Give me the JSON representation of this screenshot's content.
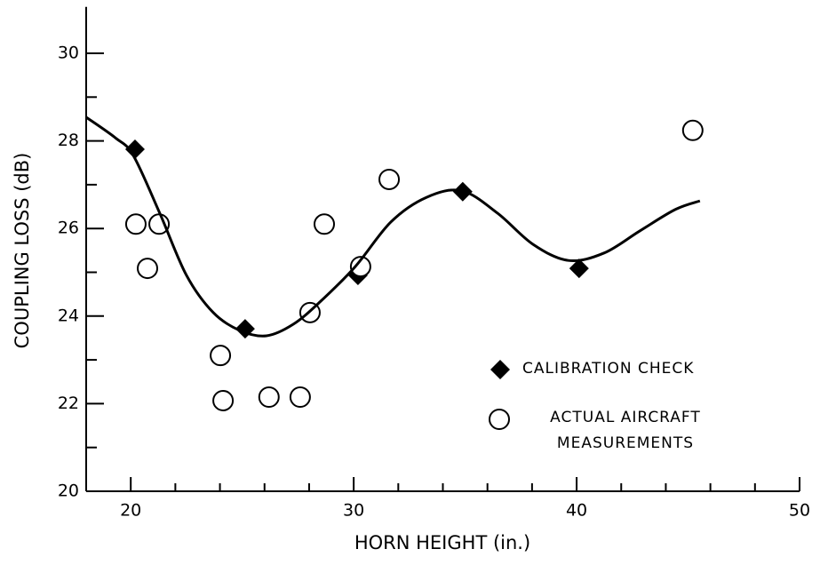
{
  "chart_data": {
    "type": "scatter",
    "xlabel": "HORN HEIGHT (in.)",
    "ylabel": "COUPLING LOSS (dB)",
    "xlim": [
      18,
      50
    ],
    "xticks": [
      20,
      30,
      40,
      50
    ],
    "xminorticks": [
      22,
      24,
      26,
      28,
      32,
      34,
      36,
      38,
      42,
      44,
      46,
      48
    ],
    "ylim": [
      20,
      31
    ],
    "yticks": [
      20,
      22,
      24,
      26,
      28,
      30
    ],
    "yminorticks": [
      21,
      23,
      25,
      27,
      29
    ],
    "color": "#000000",
    "legend": "lower right",
    "series": [
      {
        "name": "CALIBRATION CHECK",
        "marker": "diamond",
        "x": [
          20.19,
          25.13,
          30.19,
          34.89,
          40.11
        ],
        "values": [
          27.81,
          23.71,
          24.93,
          26.84,
          25.09
        ]
      },
      {
        "name": "ACTUAL AIRCRAFT MEASUREMENTS",
        "marker": "circle",
        "x": [
          20.23,
          20.75,
          21.27,
          24.02,
          24.14,
          26.2,
          27.6,
          28.04,
          28.68,
          30.31,
          31.59,
          45.21
        ],
        "values": [
          26.1,
          25.09,
          26.1,
          23.1,
          22.07,
          22.15,
          22.15,
          24.08,
          26.1,
          25.13,
          27.12,
          28.24
        ]
      },
      {
        "marker": "line",
        "x": [
          18,
          19.31,
          20.11,
          21.3,
          22.5,
          23.7,
          24.9,
          26.09,
          27.28,
          28.48,
          30.07,
          31.67,
          33.26,
          34.85,
          36.45,
          38.04,
          39.63,
          41.23,
          42.82,
          44.41,
          45.53
        ],
        "values": [
          28.54,
          28.07,
          27.67,
          26.35,
          24.93,
          24.08,
          23.67,
          23.55,
          23.81,
          24.32,
          25.13,
          26.15,
          26.71,
          26.86,
          26.35,
          25.64,
          25.27,
          25.44,
          25.94,
          26.43,
          26.63
        ]
      }
    ]
  }
}
